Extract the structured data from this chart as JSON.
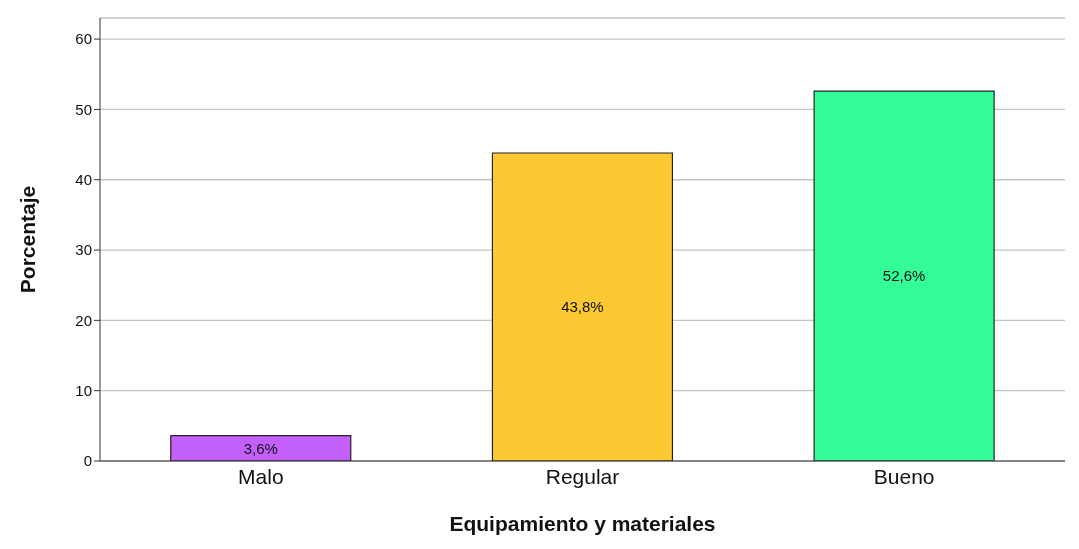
{
  "chart_data": {
    "type": "bar",
    "xlabel": "Equipamiento y materiales",
    "ylabel": "Porcentaje",
    "categories": [
      "Malo",
      "Regular",
      "Bueno"
    ],
    "values": [
      3.6,
      43.8,
      52.6
    ],
    "colors": [
      "#c35ffa",
      "#fdc831",
      "#33fd98"
    ],
    "value_labels": [
      "3,6%",
      "43,8%",
      "52,6%"
    ],
    "ylim": [
      0,
      63
    ],
    "yticks": [
      0,
      10,
      20,
      30,
      40,
      50,
      60
    ],
    "grid": "y",
    "legend": false
  }
}
